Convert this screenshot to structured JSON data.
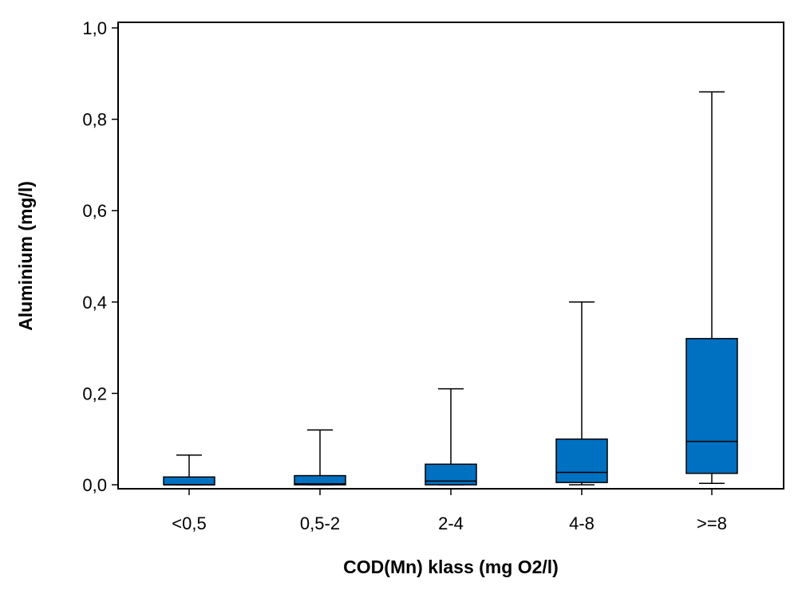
{
  "chart_data": {
    "type": "boxplot",
    "xlabel": "COD(Mn) klass (mg O2/l)",
    "ylabel": "Aluminium (mg/l)",
    "ylim": [
      0,
      1.0
    ],
    "yticks": [
      "0,0",
      "0,2",
      "0,4",
      "0,6",
      "0,8",
      "1,0"
    ],
    "ytick_values": [
      0,
      0.2,
      0.4,
      0.6,
      0.8,
      1.0
    ],
    "grid": false,
    "box_color": "#0070C0",
    "categories": [
      "<0,5",
      "0,5-2",
      "2-4",
      "4-8",
      ">=8"
    ],
    "boxes": [
      {
        "category": "<0,5",
        "whisker_low": 0.0,
        "q1": 0.0,
        "median": 0.0,
        "q3": 0.017,
        "whisker_high": 0.065
      },
      {
        "category": "0,5-2",
        "whisker_low": 0.0,
        "q1": 0.0,
        "median": 0.002,
        "q3": 0.02,
        "whisker_high": 0.12
      },
      {
        "category": "2-4",
        "whisker_low": 0.0,
        "q1": 0.0,
        "median": 0.008,
        "q3": 0.045,
        "whisker_high": 0.21
      },
      {
        "category": "4-8",
        "whisker_low": 0.0,
        "q1": 0.005,
        "median": 0.027,
        "q3": 0.1,
        "whisker_high": 0.4
      },
      {
        "category": ">=8",
        "whisker_low": 0.003,
        "q1": 0.025,
        "median": 0.095,
        "q3": 0.32,
        "whisker_high": 0.86
      }
    ]
  }
}
